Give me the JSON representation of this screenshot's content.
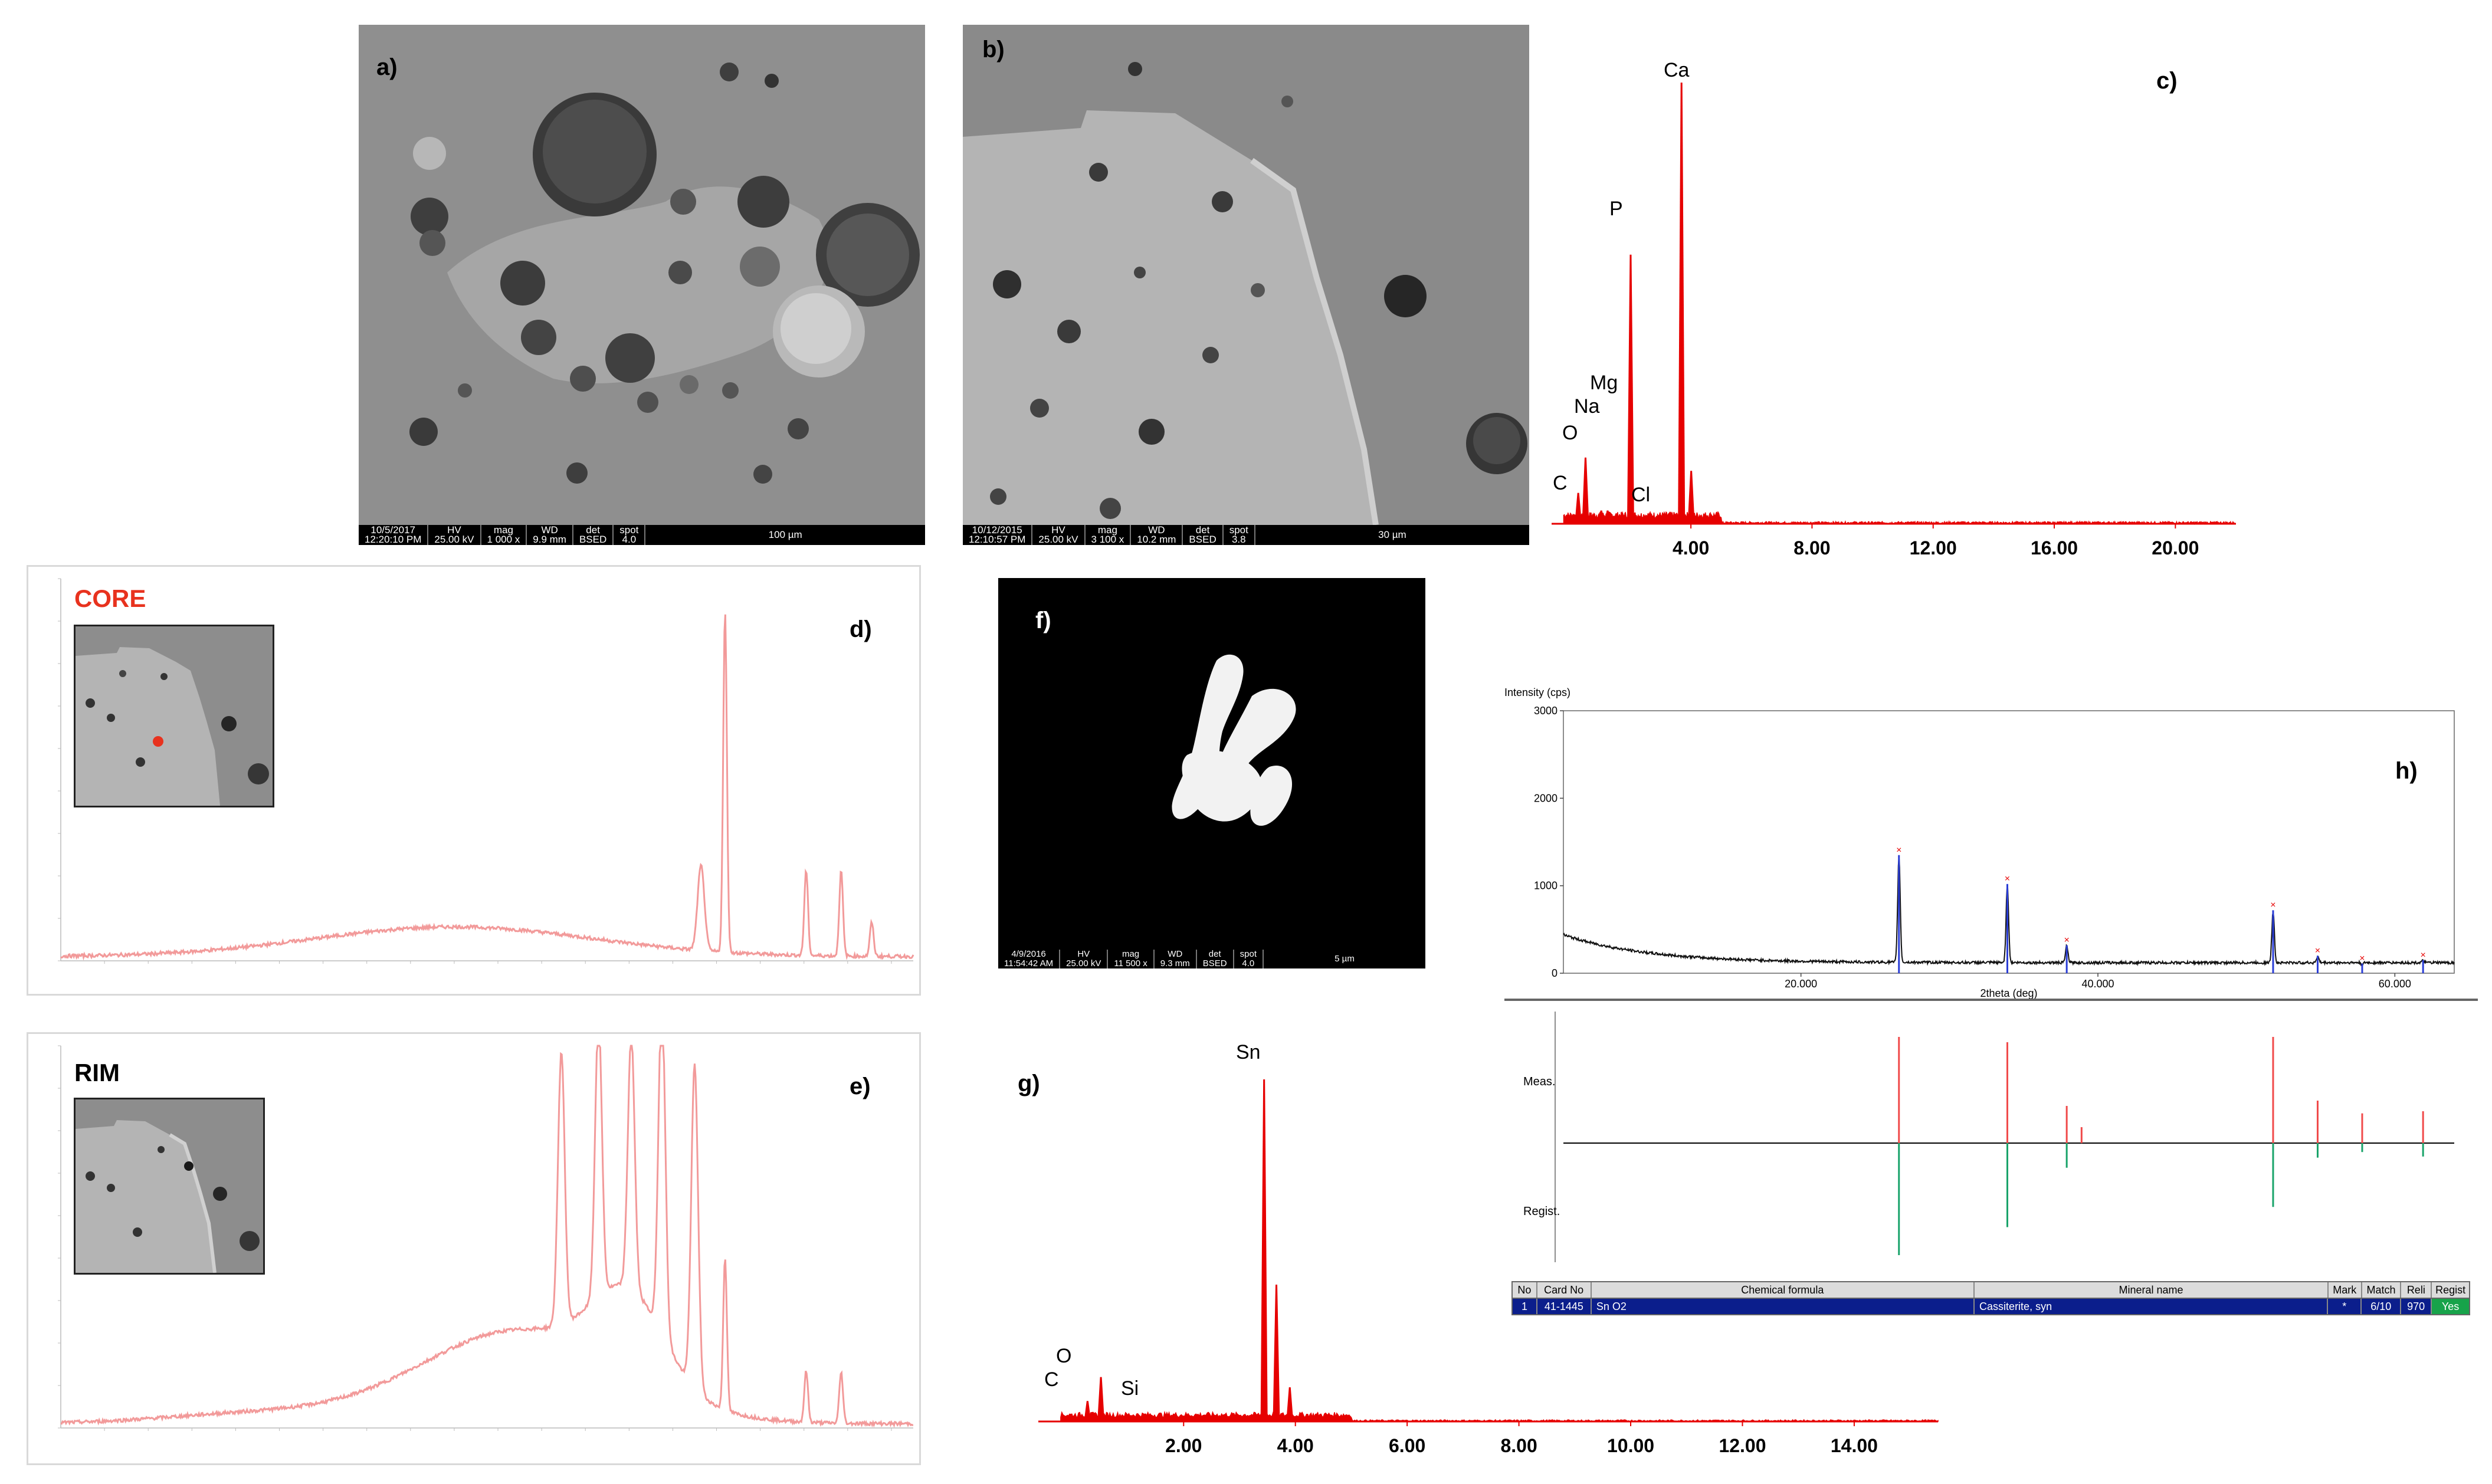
{
  "panels": {
    "a": {
      "label": "a)",
      "sem_bar": {
        "date": "10/5/2017",
        "time": "12:20:10 PM",
        "hv_label": "HV",
        "hv": "25.00 kV",
        "mag_label": "mag",
        "mag": "1 000 x",
        "wd_label": "WD",
        "wd": "9.9 mm",
        "det_label": "det",
        "det": "BSED",
        "spot_label": "spot",
        "spot": "4.0",
        "scale": "100 µm"
      }
    },
    "b": {
      "label": "b)",
      "sem_bar": {
        "date": "10/12/2015",
        "time": "12:10:57 PM",
        "hv_label": "HV",
        "hv": "25.00 kV",
        "mag_label": "mag",
        "mag": "3 100 x",
        "wd_label": "WD",
        "wd": "10.2 mm",
        "det_label": "det",
        "det": "BSED",
        "spot_label": "spot",
        "spot": "3.8",
        "scale": "30 µm"
      }
    },
    "c": {
      "label": "c)"
    },
    "d": {
      "label": "d)",
      "title": "CORE"
    },
    "e": {
      "label": "e)",
      "title": "RIM"
    },
    "f": {
      "label": "f)",
      "sem_bar": {
        "date": "4/9/2016",
        "time": "11:54:42 AM",
        "hv_label": "HV",
        "hv": "25.00 kV",
        "mag_label": "mag",
        "mag": "11 500 x",
        "wd_label": "WD",
        "wd": "9.3 mm",
        "det_label": "det",
        "det": "BSED",
        "spot_label": "spot",
        "spot": "4.0",
        "scale": "5 µm"
      }
    },
    "g": {
      "label": "g)"
    },
    "h": {
      "label": "h)",
      "meas_label": "Meas.",
      "regist_label": "Regist.",
      "table": {
        "headers": [
          "No",
          "Card No",
          "Chemical formula",
          "Mineral name",
          "Mark",
          "Match",
          "Reli",
          "Regist"
        ],
        "row": [
          "1",
          "41-1445",
          "Sn O2",
          "Cassiterite, syn",
          "*",
          "6/10",
          "970",
          "Yes"
        ]
      }
    }
  },
  "chart_data": [
    {
      "id": "c",
      "type": "line",
      "xlabel": "",
      "ylabel": "",
      "xlim": [
        -0.6,
        22.0
      ],
      "ylim": [
        0,
        100
      ],
      "tick_labels": [
        "4.00",
        "8.00",
        "12.00",
        "16.00",
        "20.00"
      ],
      "tick_values": [
        4,
        8,
        12,
        16,
        20
      ],
      "color": "#e60000",
      "peaks": [
        {
          "label": "C",
          "x": 0.28,
          "y": 7
        },
        {
          "label": "O",
          "x": 0.52,
          "y": 15
        },
        {
          "label": "Na",
          "x": 1.04,
          "y": 3
        },
        {
          "label": "Mg",
          "x": 1.25,
          "y": 3
        },
        {
          "label": "P",
          "x": 2.01,
          "y": 61
        },
        {
          "label": "Cl",
          "x": 2.62,
          "y": 2
        },
        {
          "label": "Ca",
          "x": 3.69,
          "y": 100
        },
        {
          "label": "",
          "x": 4.01,
          "y": 12
        }
      ]
    },
    {
      "id": "d",
      "type": "line",
      "title": "CORE",
      "xlim": [
        4000,
        100
      ],
      "ylim": [
        0.6,
        1.05
      ],
      "color": "#f29a9a",
      "peaks": [
        {
          "x": 1071,
          "y": 0.7
        },
        {
          "x": 961,
          "y": 1.0
        },
        {
          "x": 590,
          "y": 0.7
        },
        {
          "x": 430,
          "y": 0.7
        },
        {
          "x": 290,
          "y": 0.64
        }
      ]
    },
    {
      "id": "e",
      "type": "line",
      "title": "RIM",
      "xlim": [
        4000,
        100
      ],
      "ylim": [
        0.6,
        1.05
      ],
      "color": "#f29a9a",
      "peaks": [
        {
          "x": 1710,
          "y": 0.92
        },
        {
          "x": 1540,
          "y": 0.93
        },
        {
          "x": 1390,
          "y": 0.9
        },
        {
          "x": 1250,
          "y": 1.0
        },
        {
          "x": 1100,
          "y": 0.98
        },
        {
          "x": 961,
          "y": 0.78
        },
        {
          "x": 590,
          "y": 0.66
        },
        {
          "x": 430,
          "y": 0.66
        }
      ]
    },
    {
      "id": "g",
      "type": "line",
      "xlim": [
        -0.6,
        15.5
      ],
      "ylim": [
        0,
        100
      ],
      "tick_labels": [
        "2.00",
        "4.00",
        "6.00",
        "8.00",
        "10.00",
        "12.00",
        "14.00"
      ],
      "tick_values": [
        2,
        4,
        6,
        8,
        10,
        12,
        14
      ],
      "color": "#e60000",
      "peaks": [
        {
          "label": "C",
          "x": 0.28,
          "y": 6
        },
        {
          "label": "O",
          "x": 0.52,
          "y": 13
        },
        {
          "label": "Si",
          "x": 1.74,
          "y": 2
        },
        {
          "label": "Sn",
          "x": 3.44,
          "y": 100
        },
        {
          "label": "",
          "x": 3.66,
          "y": 40
        },
        {
          "label": "",
          "x": 3.9,
          "y": 10
        }
      ]
    },
    {
      "id": "h",
      "type": "line",
      "ylabel": "Intensity (cps)",
      "xlabel": "2theta (deg)",
      "xlim": [
        4,
        64
      ],
      "ylim": [
        0,
        3000
      ],
      "yticks": [
        0,
        1000,
        2000,
        3000
      ],
      "xticks": [
        20.0,
        40.0,
        60.0
      ],
      "xtick_labels": [
        "20.000",
        "40.000",
        "60.000"
      ],
      "peaks": [
        {
          "x": 26.6,
          "y": 1350
        },
        {
          "x": 33.9,
          "y": 1020
        },
        {
          "x": 37.9,
          "y": 320
        },
        {
          "x": 51.8,
          "y": 720
        },
        {
          "x": 54.8,
          "y": 200
        },
        {
          "x": 57.8,
          "y": 110
        },
        {
          "x": 61.9,
          "y": 150
        }
      ],
      "meas_sticks": [
        {
          "x": 26.6,
          "h": 100
        },
        {
          "x": 33.9,
          "h": 95
        },
        {
          "x": 37.9,
          "h": 35
        },
        {
          "x": 38.9,
          "h": 15
        },
        {
          "x": 51.8,
          "h": 100
        },
        {
          "x": 54.8,
          "h": 40
        },
        {
          "x": 57.8,
          "h": 28
        },
        {
          "x": 61.9,
          "h": 30
        }
      ],
      "regist_sticks": [
        {
          "x": 26.6,
          "h": 100
        },
        {
          "x": 33.9,
          "h": 75
        },
        {
          "x": 37.9,
          "h": 22
        },
        {
          "x": 51.8,
          "h": 57
        },
        {
          "x": 54.8,
          "h": 13
        },
        {
          "x": 57.8,
          "h": 8
        },
        {
          "x": 61.9,
          "h": 12
        }
      ]
    }
  ]
}
